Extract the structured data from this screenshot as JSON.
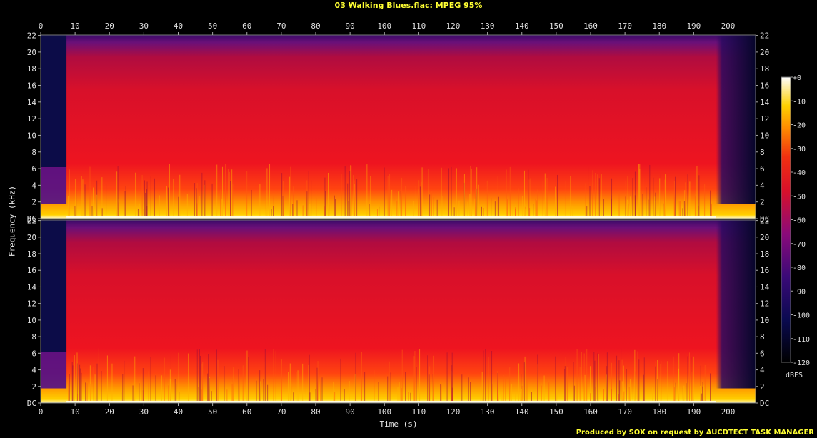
{
  "title": "03 Walking Blues.flac: MPEG 95%",
  "credit": "Produced by SOX on request by AUCDTECT TASK MANAGER",
  "chart_data": {
    "type": "heatmap",
    "title": "03 Walking Blues.flac: MPEG 95%",
    "xlabel": "Time (s)",
    "ylabel": "Frequency (kHz)",
    "xlim": [
      0,
      208
    ],
    "ylim": [
      0,
      22.05
    ],
    "x_ticks": [
      0,
      10,
      20,
      30,
      40,
      50,
      60,
      70,
      80,
      90,
      100,
      110,
      120,
      130,
      140,
      150,
      160,
      170,
      180,
      190,
      200
    ],
    "y_ticks": [
      {
        "value": 0,
        "label": "DC"
      },
      {
        "value": 2,
        "label": "2"
      },
      {
        "value": 4,
        "label": "4"
      },
      {
        "value": 6,
        "label": "6"
      },
      {
        "value": 8,
        "label": "8"
      },
      {
        "value": 10,
        "label": "10"
      },
      {
        "value": 12,
        "label": "12"
      },
      {
        "value": 14,
        "label": "14"
      },
      {
        "value": 16,
        "label": "16"
      },
      {
        "value": 18,
        "label": "18"
      },
      {
        "value": 20,
        "label": "20"
      },
      {
        "value": 22,
        "label": "22"
      }
    ],
    "channels": 2,
    "colorbar": {
      "unit": "dBFS",
      "range": [
        -120,
        0
      ],
      "ticks": [
        "+0",
        "-10",
        "-20",
        "-30",
        "-40",
        "-50",
        "-60",
        "-70",
        "-80",
        "-90",
        "-100",
        "-110",
        "-120"
      ]
    },
    "colors": {
      "background": "#000000",
      "title": "#ffff33",
      "low": "#000020",
      "mid": "#e8101c",
      "high": "#ffffe0"
    }
  }
}
